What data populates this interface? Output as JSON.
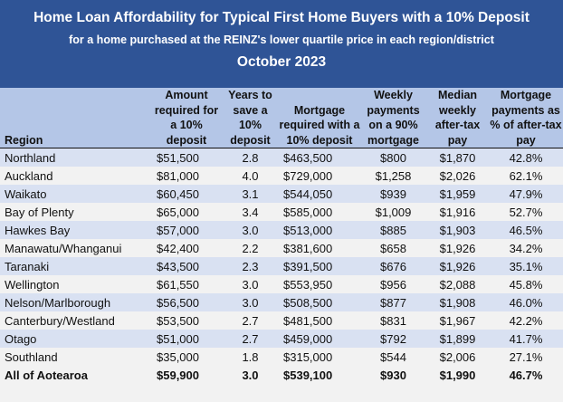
{
  "title": {
    "line1": "Home Loan Affordability for Typical First Home Buyers with a 10% Deposit",
    "line2": "for a home purchased at the REINZ's lower quartile price in each region/district",
    "line3": "October 2023"
  },
  "columns": [
    "Region",
    "Amount required for a 10% deposit",
    "Years to save a 10% deposit",
    "Mortgage required with a 10% deposit",
    "Weekly payments on a 90% mortgage",
    "Median weekly after-tax pay",
    "Mortgage payments as % of after-tax pay"
  ],
  "rows": [
    [
      "Northland",
      "$51,500",
      "2.8",
      "$463,500",
      "$800",
      "$1,870",
      "42.8%"
    ],
    [
      "Auckland",
      "$81,000",
      "4.0",
      "$729,000",
      "$1,258",
      "$2,026",
      "62.1%"
    ],
    [
      "Waikato",
      "$60,450",
      "3.1",
      "$544,050",
      "$939",
      "$1,959",
      "47.9%"
    ],
    [
      "Bay of Plenty",
      "$65,000",
      "3.4",
      "$585,000",
      "$1,009",
      "$1,916",
      "52.7%"
    ],
    [
      "Hawkes Bay",
      "$57,000",
      "3.0",
      "$513,000",
      "$885",
      "$1,903",
      "46.5%"
    ],
    [
      "Manawatu/Whanganui",
      "$42,400",
      "2.2",
      "$381,600",
      "$658",
      "$1,926",
      "34.2%"
    ],
    [
      "Taranaki",
      "$43,500",
      "2.3",
      "$391,500",
      "$676",
      "$1,926",
      "35.1%"
    ],
    [
      "Wellington",
      "$61,550",
      "3.0",
      "$553,950",
      "$956",
      "$2,088",
      "45.8%"
    ],
    [
      "Nelson/Marlborough",
      "$56,500",
      "3.0",
      "$508,500",
      "$877",
      "$1,908",
      "46.0%"
    ],
    [
      "Canterbury/Westland",
      "$53,500",
      "2.7",
      "$481,500",
      "$831",
      "$1,967",
      "42.2%"
    ],
    [
      "Otago",
      "$51,000",
      "2.7",
      "$459,000",
      "$792",
      "$1,899",
      "41.7%"
    ],
    [
      "Southland",
      "$35,000",
      "1.8",
      "$315,000",
      "$544",
      "$2,006",
      "27.1%"
    ]
  ],
  "total": [
    "All of Aotearoa",
    "$59,900",
    "3.0",
    "$539,100",
    "$930",
    "$1,990",
    "46.7%"
  ],
  "colors": {
    "banner": "#2f5496",
    "header": "#b4c6e7",
    "row_band": "#d9e1f2",
    "row_plain": "#f2f2f2"
  }
}
